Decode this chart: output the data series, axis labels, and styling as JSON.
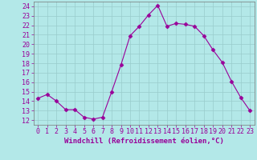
{
  "x": [
    0,
    1,
    2,
    3,
    4,
    5,
    6,
    7,
    8,
    9,
    10,
    11,
    12,
    13,
    14,
    15,
    16,
    17,
    18,
    19,
    20,
    21,
    22,
    23
  ],
  "y": [
    14.3,
    14.7,
    14.0,
    13.1,
    13.1,
    12.3,
    12.1,
    12.3,
    15.0,
    17.8,
    20.9,
    21.9,
    23.1,
    24.1,
    21.9,
    22.2,
    22.1,
    21.9,
    20.9,
    19.4,
    18.1,
    16.1,
    14.4,
    13.0
  ],
  "line_color": "#990099",
  "marker": "D",
  "marker_size": 2.5,
  "background_color": "#b3e8e8",
  "grid_color": "#aadddd",
  "xlabel": "Windchill (Refroidissement éolien,°C)",
  "xlabel_color": "#990099",
  "xlabel_fontsize": 6.5,
  "tick_label_color": "#990099",
  "tick_label_fontsize": 6,
  "ylim": [
    11.5,
    24.5
  ],
  "xlim": [
    -0.5,
    23.5
  ],
  "yticks": [
    12,
    13,
    14,
    15,
    16,
    17,
    18,
    19,
    20,
    21,
    22,
    23,
    24
  ],
  "xticks": [
    0,
    1,
    2,
    3,
    4,
    5,
    6,
    7,
    8,
    9,
    10,
    11,
    12,
    13,
    14,
    15,
    16,
    17,
    18,
    19,
    20,
    21,
    22,
    23
  ]
}
